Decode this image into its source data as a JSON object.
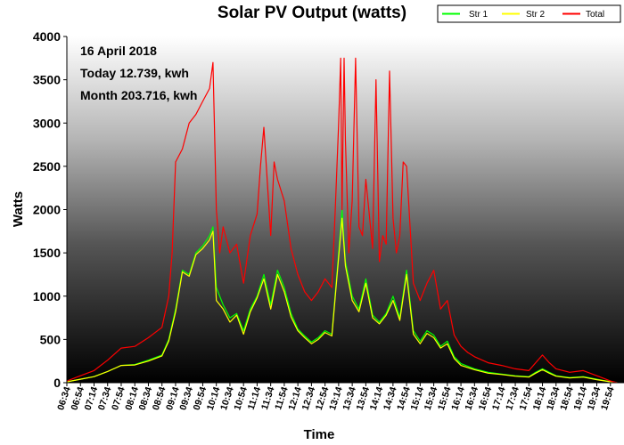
{
  "chart_data": {
    "type": "line",
    "title": "Solar PV Output (watts)",
    "xlabel": "Time",
    "ylabel": "Watts",
    "ylim": [
      0,
      4000
    ],
    "yticks": [
      0,
      500,
      1000,
      1500,
      2000,
      2500,
      3000,
      3500,
      4000
    ],
    "xlim": [
      "06:34",
      "20:14"
    ],
    "xticks": [
      "06:34",
      "06:54",
      "07:14",
      "07:34",
      "07:54",
      "08:14",
      "08:34",
      "08:54",
      "09:14",
      "09:34",
      "09:54",
      "10:14",
      "10:34",
      "10:54",
      "11:14",
      "11:34",
      "11:54",
      "12:14",
      "12:34",
      "12:54",
      "13:14",
      "13:34",
      "13:54",
      "14:14",
      "14:34",
      "14:54",
      "15:14",
      "15:34",
      "15:54",
      "16:14",
      "16:34",
      "16:54",
      "17:14",
      "17:34",
      "17:54",
      "18:14",
      "18:34",
      "18:54",
      "19:14",
      "19:34",
      "19:54"
    ],
    "legend": {
      "position": "top-right",
      "entries": [
        "Str 1",
        "Str 2",
        "Total"
      ]
    },
    "annotations": [
      "16 April 2018",
      "Today 12.739, kwh",
      "Month 203.716, kwh"
    ],
    "series": [
      {
        "name": "Str 1",
        "color": "#00ff00",
        "points": [
          [
            "06:34",
            10
          ],
          [
            "06:54",
            40
          ],
          [
            "07:14",
            70
          ],
          [
            "07:34",
            130
          ],
          [
            "07:54",
            200
          ],
          [
            "08:14",
            210
          ],
          [
            "08:34",
            260
          ],
          [
            "08:54",
            320
          ],
          [
            "09:04",
            500
          ],
          [
            "09:14",
            850
          ],
          [
            "09:24",
            1300
          ],
          [
            "09:34",
            1250
          ],
          [
            "09:44",
            1500
          ],
          [
            "09:54",
            1580
          ],
          [
            "10:04",
            1700
          ],
          [
            "10:09",
            1800
          ],
          [
            "10:14",
            1100
          ],
          [
            "10:24",
            900
          ],
          [
            "10:34",
            750
          ],
          [
            "10:44",
            800
          ],
          [
            "10:54",
            600
          ],
          [
            "11:04",
            850
          ],
          [
            "11:14",
            1000
          ],
          [
            "11:24",
            1250
          ],
          [
            "11:34",
            900
          ],
          [
            "11:44",
            1300
          ],
          [
            "11:54",
            1100
          ],
          [
            "12:04",
            800
          ],
          [
            "12:14",
            620
          ],
          [
            "12:24",
            540
          ],
          [
            "12:34",
            470
          ],
          [
            "12:44",
            520
          ],
          [
            "12:54",
            600
          ],
          [
            "13:04",
            560
          ],
          [
            "13:14",
            1500
          ],
          [
            "13:19",
            2000
          ],
          [
            "13:24",
            1400
          ],
          [
            "13:34",
            1000
          ],
          [
            "13:44",
            850
          ],
          [
            "13:54",
            1200
          ],
          [
            "14:04",
            780
          ],
          [
            "14:14",
            700
          ],
          [
            "14:24",
            800
          ],
          [
            "14:34",
            1000
          ],
          [
            "14:44",
            750
          ],
          [
            "14:54",
            1300
          ],
          [
            "15:04",
            600
          ],
          [
            "15:14",
            480
          ],
          [
            "15:24",
            600
          ],
          [
            "15:34",
            550
          ],
          [
            "15:44",
            420
          ],
          [
            "15:54",
            480
          ],
          [
            "16:04",
            300
          ],
          [
            "16:14",
            220
          ],
          [
            "16:34",
            160
          ],
          [
            "16:54",
            120
          ],
          [
            "17:14",
            100
          ],
          [
            "17:34",
            80
          ],
          [
            "17:54",
            70
          ],
          [
            "18:04",
            120
          ],
          [
            "18:14",
            160
          ],
          [
            "18:24",
            120
          ],
          [
            "18:34",
            80
          ],
          [
            "18:54",
            60
          ],
          [
            "19:14",
            70
          ],
          [
            "19:34",
            40
          ],
          [
            "19:54",
            10
          ],
          [
            "20:04",
            0
          ]
        ]
      },
      {
        "name": "Str 2",
        "color": "#ffff00",
        "points": [
          [
            "06:34",
            10
          ],
          [
            "06:54",
            40
          ],
          [
            "07:14",
            70
          ],
          [
            "07:34",
            130
          ],
          [
            "07:54",
            200
          ],
          [
            "08:14",
            205
          ],
          [
            "08:34",
            250
          ],
          [
            "08:54",
            310
          ],
          [
            "09:04",
            480
          ],
          [
            "09:14",
            820
          ],
          [
            "09:24",
            1280
          ],
          [
            "09:34",
            1230
          ],
          [
            "09:44",
            1480
          ],
          [
            "09:54",
            1550
          ],
          [
            "10:04",
            1650
          ],
          [
            "10:09",
            1750
          ],
          [
            "10:14",
            950
          ],
          [
            "10:24",
            850
          ],
          [
            "10:34",
            700
          ],
          [
            "10:44",
            780
          ],
          [
            "10:54",
            560
          ],
          [
            "11:04",
            820
          ],
          [
            "11:14",
            980
          ],
          [
            "11:24",
            1200
          ],
          [
            "11:34",
            850
          ],
          [
            "11:44",
            1250
          ],
          [
            "11:54",
            1050
          ],
          [
            "12:04",
            760
          ],
          [
            "12:14",
            600
          ],
          [
            "12:24",
            520
          ],
          [
            "12:34",
            450
          ],
          [
            "12:44",
            500
          ],
          [
            "12:54",
            580
          ],
          [
            "13:04",
            540
          ],
          [
            "13:14",
            1450
          ],
          [
            "13:19",
            1900
          ],
          [
            "13:24",
            1350
          ],
          [
            "13:34",
            950
          ],
          [
            "13:44",
            820
          ],
          [
            "13:54",
            1150
          ],
          [
            "14:04",
            750
          ],
          [
            "14:14",
            680
          ],
          [
            "14:24",
            780
          ],
          [
            "14:34",
            950
          ],
          [
            "14:44",
            720
          ],
          [
            "14:54",
            1250
          ],
          [
            "15:04",
            560
          ],
          [
            "15:14",
            450
          ],
          [
            "15:24",
            570
          ],
          [
            "15:34",
            520
          ],
          [
            "15:44",
            400
          ],
          [
            "15:54",
            450
          ],
          [
            "16:04",
            280
          ],
          [
            "16:14",
            200
          ],
          [
            "16:34",
            150
          ],
          [
            "16:54",
            110
          ],
          [
            "17:14",
            95
          ],
          [
            "17:34",
            75
          ],
          [
            "17:54",
            65
          ],
          [
            "18:04",
            110
          ],
          [
            "18:14",
            150
          ],
          [
            "18:24",
            110
          ],
          [
            "18:34",
            75
          ],
          [
            "18:54",
            55
          ],
          [
            "19:14",
            65
          ],
          [
            "19:34",
            35
          ],
          [
            "19:54",
            10
          ],
          [
            "20:04",
            0
          ]
        ]
      },
      {
        "name": "Total",
        "color": "#ff0000",
        "points": [
          [
            "06:34",
            20
          ],
          [
            "06:54",
            80
          ],
          [
            "07:14",
            140
          ],
          [
            "07:34",
            260
          ],
          [
            "07:54",
            400
          ],
          [
            "08:14",
            420
          ],
          [
            "08:34",
            520
          ],
          [
            "08:54",
            640
          ],
          [
            "09:04",
            1000
          ],
          [
            "09:09",
            1500
          ],
          [
            "09:14",
            2550
          ],
          [
            "09:24",
            2700
          ],
          [
            "09:29",
            2850
          ],
          [
            "09:34",
            3000
          ],
          [
            "09:44",
            3100
          ],
          [
            "09:54",
            3250
          ],
          [
            "10:04",
            3400
          ],
          [
            "10:09",
            3700
          ],
          [
            "10:14",
            2000
          ],
          [
            "10:19",
            1500
          ],
          [
            "10:24",
            1800
          ],
          [
            "10:34",
            1500
          ],
          [
            "10:44",
            1600
          ],
          [
            "10:54",
            1150
          ],
          [
            "11:04",
            1700
          ],
          [
            "11:14",
            1950
          ],
          [
            "11:19",
            2500
          ],
          [
            "11:24",
            2950
          ],
          [
            "11:34",
            1700
          ],
          [
            "11:39",
            2550
          ],
          [
            "11:44",
            2350
          ],
          [
            "11:54",
            2100
          ],
          [
            "12:04",
            1550
          ],
          [
            "12:14",
            1250
          ],
          [
            "12:24",
            1050
          ],
          [
            "12:34",
            950
          ],
          [
            "12:44",
            1050
          ],
          [
            "12:54",
            1200
          ],
          [
            "13:04",
            1100
          ],
          [
            "13:09",
            2000
          ],
          [
            "13:14",
            3000
          ],
          [
            "13:17",
            3750
          ],
          [
            "13:19",
            2000
          ],
          [
            "13:22",
            3750
          ],
          [
            "13:24",
            2800
          ],
          [
            "13:29",
            1500
          ],
          [
            "13:34",
            2100
          ],
          [
            "13:39",
            3750
          ],
          [
            "13:44",
            1800
          ],
          [
            "13:49",
            1700
          ],
          [
            "13:54",
            2350
          ],
          [
            "14:04",
            1550
          ],
          [
            "14:09",
            3500
          ],
          [
            "14:14",
            1400
          ],
          [
            "14:19",
            1700
          ],
          [
            "14:24",
            1600
          ],
          [
            "14:29",
            3600
          ],
          [
            "14:34",
            1900
          ],
          [
            "14:39",
            1500
          ],
          [
            "14:44",
            1700
          ],
          [
            "14:49",
            2550
          ],
          [
            "14:54",
            2500
          ],
          [
            "15:04",
            1150
          ],
          [
            "15:14",
            950
          ],
          [
            "15:24",
            1150
          ],
          [
            "15:34",
            1300
          ],
          [
            "15:44",
            850
          ],
          [
            "15:54",
            950
          ],
          [
            "16:04",
            550
          ],
          [
            "16:14",
            420
          ],
          [
            "16:24",
            350
          ],
          [
            "16:34",
            300
          ],
          [
            "16:54",
            230
          ],
          [
            "17:14",
            200
          ],
          [
            "17:34",
            160
          ],
          [
            "17:54",
            140
          ],
          [
            "18:04",
            230
          ],
          [
            "18:14",
            320
          ],
          [
            "18:24",
            230
          ],
          [
            "18:34",
            160
          ],
          [
            "18:54",
            120
          ],
          [
            "19:14",
            140
          ],
          [
            "19:34",
            80
          ],
          [
            "19:54",
            20
          ],
          [
            "20:04",
            0
          ]
        ]
      }
    ]
  }
}
